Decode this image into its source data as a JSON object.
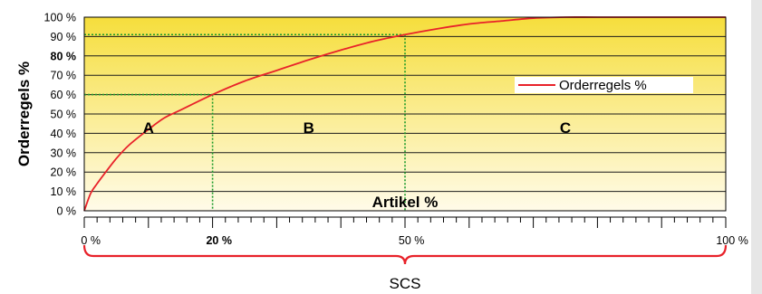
{
  "chart_data": {
    "type": "line",
    "title": "",
    "xlabel": "Artikel %",
    "ylabel": "Orderregels %",
    "xlim": [
      0,
      100
    ],
    "ylim": [
      0,
      100
    ],
    "grid": true,
    "legend": {
      "position": "right",
      "entries": [
        "Orderregels %"
      ]
    },
    "x_ticks": [
      {
        "value": 0,
        "label": "0 %",
        "bold": false
      },
      {
        "value": 20,
        "label": "20 %",
        "bold": true
      },
      {
        "value": 50,
        "label": "50 %",
        "bold": false
      },
      {
        "value": 100,
        "label": "100 %",
        "bold": false
      }
    ],
    "y_ticks": [
      {
        "value": 0,
        "label": "0 %",
        "bold": false
      },
      {
        "value": 10,
        "label": "10 %",
        "bold": false
      },
      {
        "value": 20,
        "label": "20 %",
        "bold": false
      },
      {
        "value": 30,
        "label": "30 %",
        "bold": false
      },
      {
        "value": 40,
        "label": "40 %",
        "bold": false
      },
      {
        "value": 50,
        "label": "50 %",
        "bold": false
      },
      {
        "value": 60,
        "label": "60 %",
        "bold": false
      },
      {
        "value": 70,
        "label": "70 %",
        "bold": false
      },
      {
        "value": 80,
        "label": "80 %",
        "bold": true
      },
      {
        "value": 90,
        "label": "90 %",
        "bold": false
      },
      {
        "value": 100,
        "label": "100 %",
        "bold": false
      }
    ],
    "series": [
      {
        "name": "Orderregels %",
        "color": "#e8222a",
        "points": [
          [
            0,
            0
          ],
          [
            1,
            9
          ],
          [
            2,
            14
          ],
          [
            3,
            18.5
          ],
          [
            5,
            27
          ],
          [
            7,
            34
          ],
          [
            10,
            42
          ],
          [
            12.5,
            48
          ],
          [
            15,
            52
          ],
          [
            20,
            60
          ],
          [
            25,
            67
          ],
          [
            30,
            72.5
          ],
          [
            35,
            78
          ],
          [
            40,
            83
          ],
          [
            45,
            87.5
          ],
          [
            50,
            91
          ],
          [
            55,
            94
          ],
          [
            60,
            96.5
          ],
          [
            65,
            98
          ],
          [
            70,
            99.5
          ],
          [
            75,
            100
          ],
          [
            80,
            100
          ],
          [
            90,
            100
          ],
          [
            100,
            100
          ]
        ]
      }
    ],
    "reference_lines": [
      {
        "x": 20,
        "y": 60,
        "color": "#1a9a2a"
      },
      {
        "x": 50,
        "y": 91,
        "color": "#1a9a2a"
      }
    ],
    "zones": [
      {
        "label": "A",
        "x": 10,
        "y": 43
      },
      {
        "label": "B",
        "x": 35,
        "y": 43
      },
      {
        "label": "C",
        "x": 75,
        "y": 43
      }
    ],
    "bracket": {
      "label": "SCS",
      "from": 0,
      "to": 100,
      "color": "#e8222a"
    },
    "colors": {
      "background_top": "#f6de3c",
      "background_bottom": "#fffbe9",
      "grid": "#1a1a1a",
      "axis": "#000000",
      "text": "#000000"
    }
  }
}
